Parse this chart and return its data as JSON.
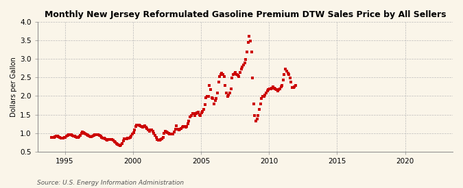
{
  "title": "Monthly New Jersey Reformulated Gasoline Premium DTW Sales Price by All Sellers",
  "ylabel": "Dollars per Gallon",
  "source": "Source: U.S. Energy Information Administration",
  "xlim": [
    1993.0,
    2023.5
  ],
  "ylim": [
    0.5,
    4.0
  ],
  "yticks": [
    0.5,
    1.0,
    1.5,
    2.0,
    2.5,
    3.0,
    3.5,
    4.0
  ],
  "xticks": [
    1995,
    2000,
    2005,
    2010,
    2015,
    2020
  ],
  "background_color": "#faf5e9",
  "dot_color": "#cc0000",
  "dot_size": 5,
  "data": [
    [
      1994.04,
      0.88
    ],
    [
      1994.12,
      0.88
    ],
    [
      1994.21,
      0.89
    ],
    [
      1994.29,
      0.9
    ],
    [
      1994.38,
      0.91
    ],
    [
      1994.46,
      0.91
    ],
    [
      1994.54,
      0.9
    ],
    [
      1994.63,
      0.89
    ],
    [
      1994.71,
      0.87
    ],
    [
      1994.79,
      0.86
    ],
    [
      1994.88,
      0.87
    ],
    [
      1994.96,
      0.88
    ],
    [
      1995.04,
      0.89
    ],
    [
      1995.12,
      0.91
    ],
    [
      1995.21,
      0.93
    ],
    [
      1995.29,
      0.95
    ],
    [
      1995.38,
      0.96
    ],
    [
      1995.46,
      0.95
    ],
    [
      1995.54,
      0.93
    ],
    [
      1995.63,
      0.92
    ],
    [
      1995.71,
      0.91
    ],
    [
      1995.79,
      0.9
    ],
    [
      1995.88,
      0.89
    ],
    [
      1995.96,
      0.89
    ],
    [
      1996.04,
      0.9
    ],
    [
      1996.12,
      0.94
    ],
    [
      1996.21,
      1.0
    ],
    [
      1996.29,
      1.03
    ],
    [
      1996.38,
      1.01
    ],
    [
      1996.46,
      0.99
    ],
    [
      1996.54,
      0.97
    ],
    [
      1996.63,
      0.95
    ],
    [
      1996.71,
      0.93
    ],
    [
      1996.79,
      0.91
    ],
    [
      1996.88,
      0.9
    ],
    [
      1996.96,
      0.9
    ],
    [
      1997.04,
      0.91
    ],
    [
      1997.12,
      0.93
    ],
    [
      1997.21,
      0.95
    ],
    [
      1997.29,
      0.96
    ],
    [
      1997.38,
      0.96
    ],
    [
      1997.46,
      0.95
    ],
    [
      1997.54,
      0.93
    ],
    [
      1997.63,
      0.91
    ],
    [
      1997.71,
      0.88
    ],
    [
      1997.79,
      0.87
    ],
    [
      1997.88,
      0.86
    ],
    [
      1997.96,
      0.84
    ],
    [
      1998.04,
      0.82
    ],
    [
      1998.12,
      0.81
    ],
    [
      1998.21,
      0.82
    ],
    [
      1998.29,
      0.83
    ],
    [
      1998.38,
      0.83
    ],
    [
      1998.46,
      0.82
    ],
    [
      1998.54,
      0.8
    ],
    [
      1998.63,
      0.78
    ],
    [
      1998.71,
      0.75
    ],
    [
      1998.79,
      0.72
    ],
    [
      1998.88,
      0.7
    ],
    [
      1998.96,
      0.68
    ],
    [
      1999.04,
      0.67
    ],
    [
      1999.12,
      0.68
    ],
    [
      1999.21,
      0.72
    ],
    [
      1999.29,
      0.79
    ],
    [
      1999.38,
      0.84
    ],
    [
      1999.46,
      0.85
    ],
    [
      1999.54,
      0.85
    ],
    [
      1999.63,
      0.86
    ],
    [
      1999.71,
      0.87
    ],
    [
      1999.79,
      0.88
    ],
    [
      1999.88,
      0.92
    ],
    [
      1999.96,
      0.97
    ],
    [
      2000.04,
      1.02
    ],
    [
      2000.12,
      1.08
    ],
    [
      2000.21,
      1.18
    ],
    [
      2000.29,
      1.21
    ],
    [
      2000.38,
      1.22
    ],
    [
      2000.46,
      1.22
    ],
    [
      2000.54,
      1.2
    ],
    [
      2000.63,
      1.18
    ],
    [
      2000.71,
      1.16
    ],
    [
      2000.79,
      1.18
    ],
    [
      2000.88,
      1.2
    ],
    [
      2000.96,
      1.16
    ],
    [
      2001.04,
      1.12
    ],
    [
      2001.12,
      1.08
    ],
    [
      2001.21,
      1.05
    ],
    [
      2001.29,
      1.09
    ],
    [
      2001.38,
      1.08
    ],
    [
      2001.46,
      1.04
    ],
    [
      2001.54,
      0.99
    ],
    [
      2001.63,
      0.94
    ],
    [
      2001.71,
      0.89
    ],
    [
      2001.79,
      0.82
    ],
    [
      2001.88,
      0.8
    ],
    [
      2001.96,
      0.81
    ],
    [
      2002.04,
      0.82
    ],
    [
      2002.12,
      0.85
    ],
    [
      2002.21,
      0.88
    ],
    [
      2002.29,
      1.0
    ],
    [
      2002.38,
      1.04
    ],
    [
      2002.46,
      1.03
    ],
    [
      2002.54,
      1.01
    ],
    [
      2002.63,
      0.99
    ],
    [
      2002.71,
      0.97
    ],
    [
      2002.79,
      0.97
    ],
    [
      2002.88,
      0.97
    ],
    [
      2002.96,
      0.97
    ],
    [
      2003.04,
      1.03
    ],
    [
      2003.12,
      1.1
    ],
    [
      2003.21,
      1.19
    ],
    [
      2003.29,
      1.1
    ],
    [
      2003.38,
      1.08
    ],
    [
      2003.46,
      1.1
    ],
    [
      2003.54,
      1.12
    ],
    [
      2003.63,
      1.15
    ],
    [
      2003.71,
      1.17
    ],
    [
      2003.79,
      1.18
    ],
    [
      2003.88,
      1.15
    ],
    [
      2003.96,
      1.18
    ],
    [
      2004.04,
      1.26
    ],
    [
      2004.12,
      1.33
    ],
    [
      2004.21,
      1.44
    ],
    [
      2004.29,
      1.48
    ],
    [
      2004.38,
      1.53
    ],
    [
      2004.46,
      1.53
    ],
    [
      2004.54,
      1.48
    ],
    [
      2004.63,
      1.52
    ],
    [
      2004.71,
      1.54
    ],
    [
      2004.79,
      1.56
    ],
    [
      2004.88,
      1.5
    ],
    [
      2004.96,
      1.48
    ],
    [
      2005.04,
      1.54
    ],
    [
      2005.12,
      1.59
    ],
    [
      2005.21,
      1.63
    ],
    [
      2005.29,
      1.76
    ],
    [
      2005.38,
      1.95
    ],
    [
      2005.46,
      1.99
    ],
    [
      2005.54,
      1.99
    ],
    [
      2005.63,
      2.28
    ],
    [
      2005.71,
      2.18
    ],
    [
      2005.79,
      1.96
    ],
    [
      2005.88,
      1.93
    ],
    [
      2005.96,
      1.78
    ],
    [
      2006.04,
      1.88
    ],
    [
      2006.12,
      1.93
    ],
    [
      2006.21,
      2.08
    ],
    [
      2006.29,
      2.38
    ],
    [
      2006.38,
      2.52
    ],
    [
      2006.46,
      2.58
    ],
    [
      2006.54,
      2.62
    ],
    [
      2006.63,
      2.58
    ],
    [
      2006.71,
      2.52
    ],
    [
      2006.79,
      2.28
    ],
    [
      2006.88,
      2.08
    ],
    [
      2006.96,
      1.98
    ],
    [
      2007.04,
      2.03
    ],
    [
      2007.12,
      2.09
    ],
    [
      2007.21,
      2.19
    ],
    [
      2007.29,
      2.48
    ],
    [
      2007.38,
      2.58
    ],
    [
      2007.46,
      2.6
    ],
    [
      2007.54,
      2.63
    ],
    [
      2007.63,
      2.58
    ],
    [
      2007.71,
      2.56
    ],
    [
      2007.79,
      2.53
    ],
    [
      2007.88,
      2.63
    ],
    [
      2007.96,
      2.73
    ],
    [
      2008.04,
      2.78
    ],
    [
      2008.12,
      2.83
    ],
    [
      2008.21,
      2.89
    ],
    [
      2008.29,
      2.99
    ],
    [
      2008.38,
      3.19
    ],
    [
      2008.46,
      3.44
    ],
    [
      2008.54,
      3.62
    ],
    [
      2008.63,
      3.48
    ],
    [
      2008.71,
      3.18
    ],
    [
      2008.79,
      2.48
    ],
    [
      2008.88,
      1.78
    ],
    [
      2008.96,
      1.48
    ],
    [
      2009.04,
      1.33
    ],
    [
      2009.12,
      1.38
    ],
    [
      2009.21,
      1.48
    ],
    [
      2009.29,
      1.63
    ],
    [
      2009.38,
      1.78
    ],
    [
      2009.46,
      1.93
    ],
    [
      2009.54,
      1.98
    ],
    [
      2009.63,
      1.98
    ],
    [
      2009.71,
      2.03
    ],
    [
      2009.79,
      2.08
    ],
    [
      2009.88,
      2.13
    ],
    [
      2009.96,
      2.17
    ],
    [
      2010.04,
      2.19
    ],
    [
      2010.12,
      2.19
    ],
    [
      2010.21,
      2.21
    ],
    [
      2010.29,
      2.24
    ],
    [
      2010.38,
      2.21
    ],
    [
      2010.46,
      2.19
    ],
    [
      2010.54,
      2.17
    ],
    [
      2010.63,
      2.14
    ],
    [
      2010.71,
      2.17
    ],
    [
      2010.79,
      2.19
    ],
    [
      2010.88,
      2.24
    ],
    [
      2010.96,
      2.29
    ],
    [
      2011.04,
      2.44
    ],
    [
      2011.12,
      2.58
    ],
    [
      2011.21,
      2.72
    ],
    [
      2011.29,
      2.68
    ],
    [
      2011.38,
      2.62
    ],
    [
      2011.46,
      2.58
    ],
    [
      2011.54,
      2.48
    ],
    [
      2011.63,
      2.38
    ],
    [
      2011.71,
      2.23
    ],
    [
      2011.79,
      2.23
    ],
    [
      2011.88,
      2.25
    ],
    [
      2011.96,
      2.29
    ]
  ]
}
